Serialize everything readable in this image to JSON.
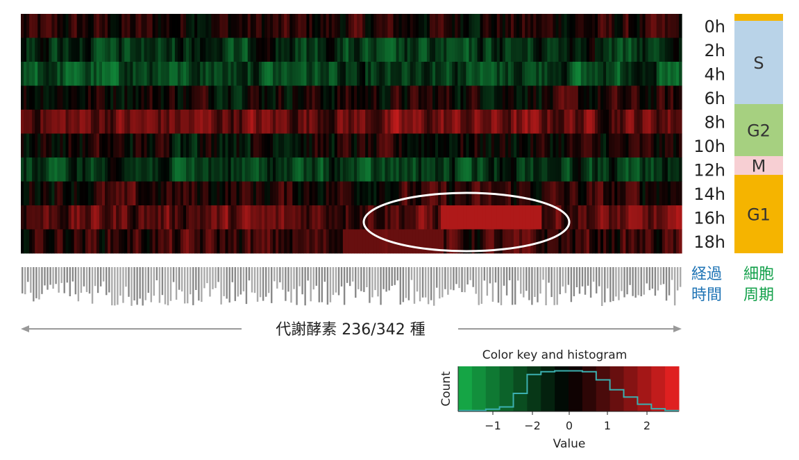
{
  "chart_data": {
    "type": "heatmap",
    "rows": [
      "0h",
      "2h",
      "4h",
      "6h",
      "8h",
      "10h",
      "12h",
      "14h",
      "16h",
      "18h"
    ],
    "n_columns": 236,
    "color_scale": {
      "low": "#16b04a",
      "mid": "#000000",
      "high": "#ee2222",
      "range": [
        -3,
        3
      ]
    },
    "row_profiles": [
      {
        "row": "0h",
        "mean": 0.3
      },
      {
        "row": "2h",
        "mean": -0.8
      },
      {
        "row": "4h",
        "mean": -1.2
      },
      {
        "row": "6h",
        "mean": 0.2
      },
      {
        "row": "8h",
        "mean": 1.3
      },
      {
        "row": "10h",
        "mean": 0.1
      },
      {
        "row": "12h",
        "mean": -0.9
      },
      {
        "row": "14h",
        "mean": 0.4
      },
      {
        "row": "16h",
        "mean": 1.1
      },
      {
        "row": "18h",
        "mean": 0.6
      }
    ],
    "cell_cycle_phases": [
      {
        "label": "",
        "color": "#f5b400"
      },
      {
        "label": "S",
        "color": "#b9d3e8"
      },
      {
        "label": "G2",
        "color": "#a6d080"
      },
      {
        "label": "M",
        "color": "#f7cfd3"
      },
      {
        "label": "G1",
        "color": "#f5b400"
      }
    ],
    "legend": {
      "time_label_line1": "経過",
      "time_label_line2": "時間",
      "phase_label_line1": "細胞",
      "phase_label_line2": "周期",
      "time_color": "#1f74b5",
      "phase_color": "#12a04a"
    },
    "xlabel": "代謝酵素 236/342 種",
    "color_key": {
      "title": "Color key and histogram",
      "xlabel": "Value",
      "ylabel": "Count",
      "ticks": [
        "−1",
        "−2",
        "0",
        "1",
        "2"
      ],
      "histogram_color": "#3bb0b0"
    }
  }
}
